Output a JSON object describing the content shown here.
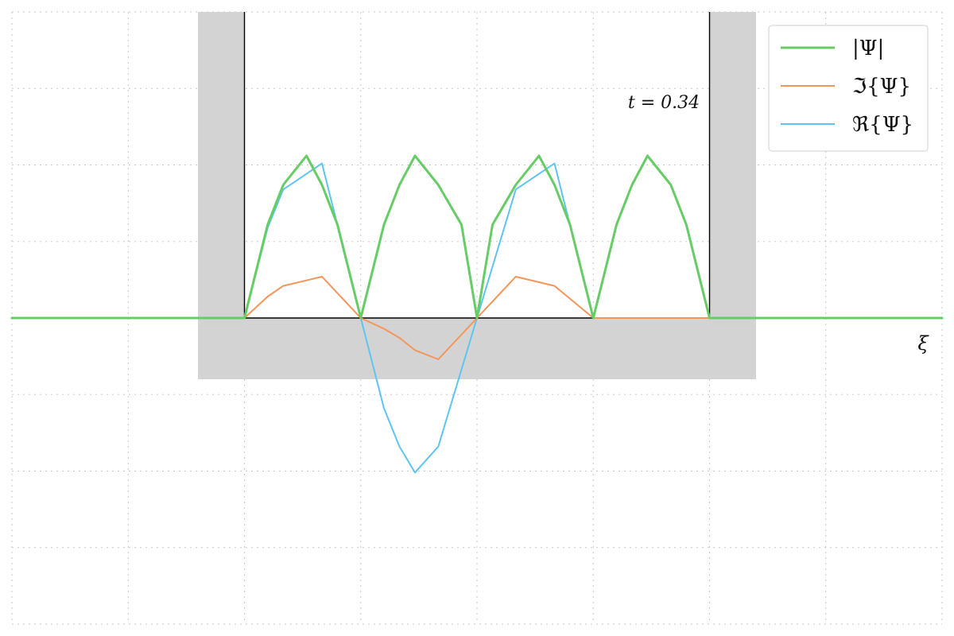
{
  "chart_data": {
    "type": "line",
    "title": "",
    "xlabel": "ξ",
    "ylabel": "",
    "annotation": "t = 0.34",
    "xlim": [
      -3.0,
      3.0
    ],
    "ylim": [
      -2.0,
      2.0
    ],
    "grid": true,
    "legend_position": "top-right",
    "potential_box": {
      "x": [
        -1.5,
        1.5
      ],
      "height": 2.0
    },
    "series": [
      {
        "name": "|Ψ|",
        "color": "#66cc66",
        "x": [
          -3.0,
          -1.5,
          -1.35,
          -1.25,
          -1.1,
          -1.0,
          -0.9,
          -0.75,
          -0.6,
          -0.5,
          -0.4,
          -0.25,
          -0.1,
          0.0,
          0.1,
          0.25,
          0.4,
          0.5,
          0.6,
          0.75,
          0.9,
          1.0,
          1.1,
          1.25,
          1.35,
          1.5,
          3.0
        ],
        "y": [
          0.0,
          0.0,
          0.61,
          0.87,
          1.06,
          0.87,
          0.61,
          0.0,
          0.61,
          0.87,
          1.06,
          0.87,
          0.61,
          0.0,
          0.61,
          0.87,
          1.06,
          0.87,
          0.61,
          0.0,
          0.61,
          0.87,
          1.06,
          0.87,
          0.61,
          0.0,
          0.0
        ]
      },
      {
        "name": "ℑ{Ψ}",
        "color": "#f4955a",
        "x": [
          -1.5,
          -1.35,
          -1.25,
          -1.0,
          -0.75,
          -0.6,
          -0.5,
          -0.4,
          -0.25,
          0.0,
          0.25,
          0.5,
          0.75,
          1.0,
          1.25,
          1.35,
          1.5
        ],
        "y": [
          0.0,
          0.14,
          0.21,
          0.27,
          0.0,
          -0.07,
          -0.13,
          -0.21,
          -0.27,
          0.0,
          0.27,
          0.21,
          0.0,
          0.0,
          0.0,
          0.0,
          0.0
        ]
      },
      {
        "name": "ℜ{Ψ}",
        "color": "#5ec4f0",
        "x": [
          -1.5,
          -1.35,
          -1.25,
          -1.0,
          -0.75,
          -0.6,
          -0.5,
          -0.4,
          -0.25,
          0.0,
          0.25,
          0.5,
          0.75,
          1.0,
          1.25,
          1.35,
          1.5
        ],
        "y": [
          0.0,
          0.59,
          0.84,
          1.01,
          0.0,
          -0.59,
          -0.84,
          -1.01,
          -0.84,
          0.0,
          0.84,
          1.01,
          0.0,
          0.0,
          0.0,
          0.0,
          0.0
        ]
      }
    ]
  }
}
